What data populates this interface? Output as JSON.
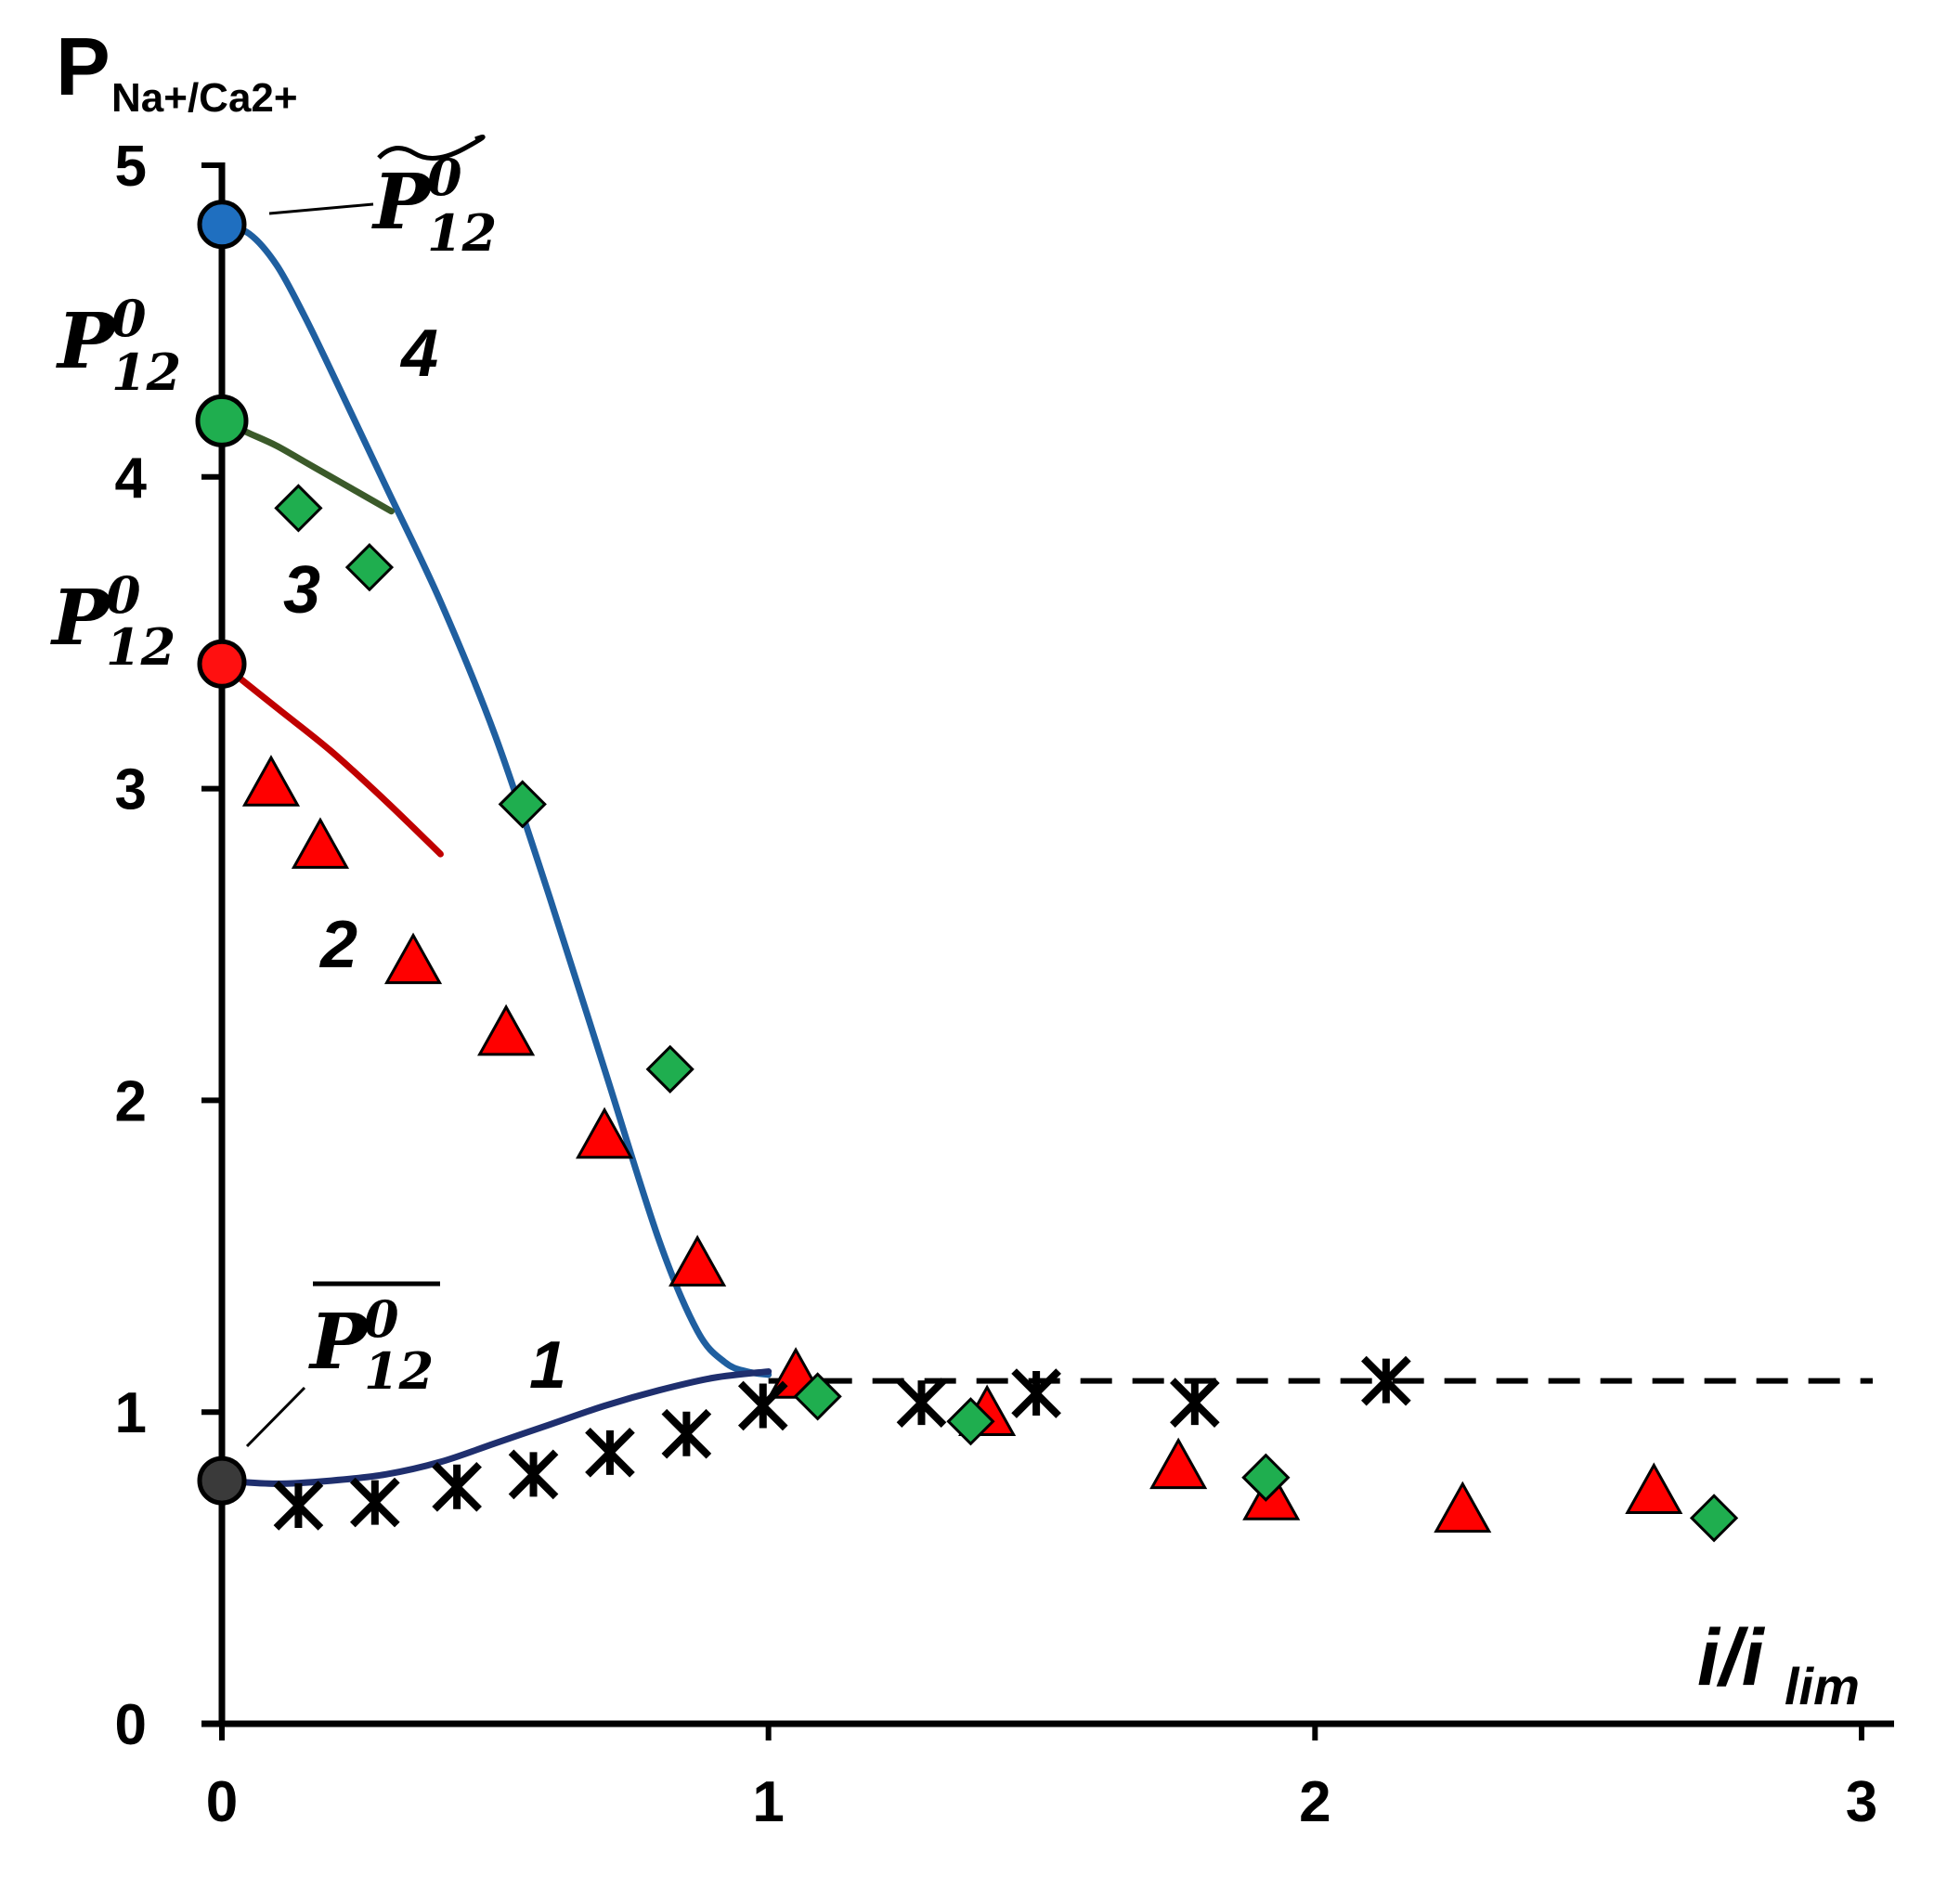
{
  "chart_data": {
    "type": "scatter",
    "xlim": [
      0,
      3
    ],
    "ylim": [
      0,
      5
    ],
    "x_ticks": [
      "0",
      "1",
      "2",
      "3"
    ],
    "y_ticks": [
      "0",
      "1",
      "2",
      "3",
      "4",
      "5"
    ],
    "ylabel_main": "P",
    "ylabel_sub": "Na+/Ca2+",
    "xlabel_main": "i/i",
    "xlabel_sub": "lim",
    "annotation_P": "P",
    "annotation_sup": "0",
    "annotation_sub": "12",
    "curve_labels": [
      "1",
      "2",
      "3",
      "4"
    ],
    "grid": false,
    "legend": "none",
    "colors": {
      "curve1": "#1f2f6e",
      "curve2": "#c00000",
      "curve3": "#3b5a2a",
      "curve4": "#1f5fa0",
      "triangle": "#ff0000",
      "diamond": "#1fae4f",
      "marker_edge": "#000000",
      "dot_blue": "#1f6fc0",
      "dot_green": "#1fae4f",
      "dot_red": "#ff1010",
      "dot_gray": "#3a3a3a"
    },
    "series": [
      {
        "marker": "triangle",
        "points": [
          [
            0.09,
            3.01
          ],
          [
            0.18,
            2.81
          ],
          [
            0.35,
            2.44
          ],
          [
            0.52,
            2.21
          ],
          [
            0.7,
            1.88
          ],
          [
            0.87,
            1.47
          ],
          [
            1.05,
            1.11
          ],
          [
            1.4,
            0.99
          ],
          [
            1.75,
            0.82
          ],
          [
            1.92,
            0.72
          ],
          [
            2.27,
            0.68
          ],
          [
            2.62,
            0.74
          ]
        ]
      },
      {
        "marker": "diamond",
        "points": [
          [
            0.14,
            3.9
          ],
          [
            0.27,
            3.71
          ],
          [
            0.55,
            2.95
          ],
          [
            0.82,
            2.1
          ],
          [
            1.09,
            1.05
          ],
          [
            1.37,
            0.97
          ],
          [
            1.91,
            0.79
          ],
          [
            2.73,
            0.66
          ]
        ]
      },
      {
        "marker": "star",
        "points": [
          [
            0.14,
            0.7
          ],
          [
            0.28,
            0.71
          ],
          [
            0.43,
            0.76
          ],
          [
            0.57,
            0.8
          ],
          [
            0.71,
            0.87
          ],
          [
            0.85,
            0.93
          ],
          [
            0.99,
            1.02
          ],
          [
            1.28,
            1.03
          ],
          [
            1.49,
            1.06
          ],
          [
            1.78,
            1.03
          ],
          [
            2.13,
            1.1
          ]
        ]
      },
      {
        "name": "4",
        "type": "line",
        "x": [
          0.0,
          0.05,
          0.1,
          0.15,
          0.2,
          0.3,
          0.4,
          0.5,
          0.6,
          0.7,
          0.8,
          0.87,
          0.92,
          0.96,
          1.0
        ],
        "y": [
          4.81,
          4.78,
          4.68,
          4.52,
          4.34,
          3.97,
          3.6,
          3.17,
          2.65,
          2.1,
          1.55,
          1.26,
          1.16,
          1.13,
          1.12
        ]
      },
      {
        "name": "3",
        "type": "line",
        "x": [
          0.0,
          0.05,
          0.1,
          0.15,
          0.2,
          0.25,
          0.31
        ],
        "y": [
          4.18,
          4.14,
          4.1,
          4.05,
          4.0,
          3.95,
          3.89
        ]
      },
      {
        "name": "2",
        "type": "line",
        "x": [
          0.0,
          0.1,
          0.2,
          0.3,
          0.4
        ],
        "y": [
          3.4,
          3.26,
          3.12,
          2.96,
          2.79
        ]
      },
      {
        "name": "1",
        "type": "line",
        "x": [
          0.0,
          0.1,
          0.2,
          0.3,
          0.4,
          0.5,
          0.6,
          0.7,
          0.8,
          0.9,
          1.0
        ],
        "y": [
          0.78,
          0.77,
          0.78,
          0.8,
          0.84,
          0.9,
          0.96,
          1.02,
          1.07,
          1.11,
          1.13
        ]
      },
      {
        "type": "dashed",
        "x": [
          1.0,
          3.0
        ],
        "y": [
          1.1,
          1.1
        ]
      }
    ],
    "special_points": [
      {
        "x": 0,
        "y": 4.81,
        "color": "dot_blue"
      },
      {
        "x": 0,
        "y": 4.18,
        "color": "dot_green"
      },
      {
        "x": 0,
        "y": 3.4,
        "color": "dot_red"
      },
      {
        "x": 0,
        "y": 0.78,
        "color": "dot_gray"
      }
    ]
  }
}
